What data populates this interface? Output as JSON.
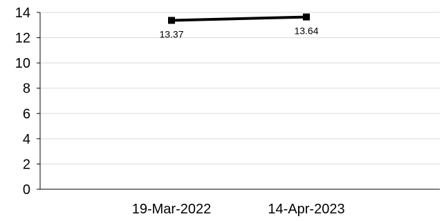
{
  "chart_data": {
    "type": "line",
    "title": "",
    "xlabel": "",
    "ylabel": "",
    "categories": [
      "19-Mar-2022",
      "14-Apr-2023"
    ],
    "series": [
      {
        "values": [
          13.37,
          13.64
        ],
        "data_labels": [
          "13.37",
          "13.64"
        ],
        "color": "#000000",
        "marker": "square"
      }
    ],
    "ylim": [
      0,
      14
    ],
    "yticks": [
      0,
      2,
      4,
      6,
      8,
      10,
      12,
      14
    ],
    "ytick_labels": [
      "0",
      "2",
      "4",
      "6",
      "8",
      "10",
      "12",
      "14"
    ],
    "grid": true,
    "gridline_color": "#d9d9d9",
    "legend": "none"
  }
}
